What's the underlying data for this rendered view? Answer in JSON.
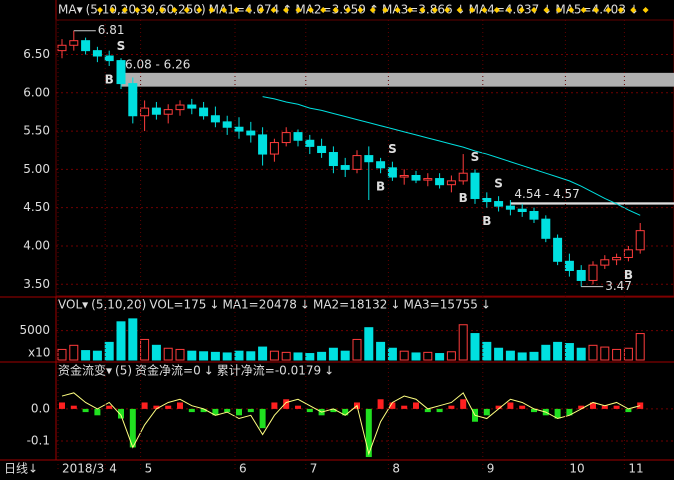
{
  "chart_data": [
    {
      "type": "candlestick",
      "header": [
        {
          "text": "MA▾",
          "color": "#ffffff"
        },
        {
          "text": "(5,10,20,30,60,250)",
          "color": "#ffffff"
        },
        {
          "text": "MA1=4.074",
          "color": "#ffffff"
        },
        {
          "text": "↑",
          "color": "#ff4040"
        },
        {
          "text": "MA2=3.959",
          "color": "#ffff00"
        },
        {
          "text": "↑",
          "color": "#ff4040"
        },
        {
          "text": "MA3=3.866",
          "color": "#ff40ff"
        },
        {
          "text": "↓",
          "color": "#00e0e0"
        },
        {
          "text": "MA4=4.037",
          "color": "#40ff40"
        },
        {
          "text": "↓",
          "color": "#00e0e0"
        },
        {
          "text": "MA5=4.403",
          "color": "#00e0e0"
        },
        {
          "text": "↓",
          "color": "#00e0e0"
        }
      ],
      "ylim": [
        3.36,
        6.95
      ],
      "yticks": [
        {
          "value": 6.5,
          "label": "6.50"
        },
        {
          "value": 6,
          "label": "6.00"
        },
        {
          "value": 5.5,
          "label": "5.50"
        },
        {
          "value": 5,
          "label": "5.00"
        },
        {
          "value": 4.5,
          "label": "4.50"
        },
        {
          "value": 4,
          "label": "4.00"
        },
        {
          "value": 3.5,
          "label": "3.50"
        }
      ],
      "up_color": "#ff3c3c",
      "down_color": "#00e0e0",
      "ohlc": [
        [
          6.55,
          6.7,
          6.45,
          6.62
        ],
        [
          6.62,
          6.81,
          6.55,
          6.68
        ],
        [
          6.68,
          6.72,
          6.5,
          6.55
        ],
        [
          6.55,
          6.6,
          6.4,
          6.48
        ],
        [
          6.48,
          6.55,
          6.35,
          6.42
        ],
        [
          6.42,
          6.45,
          6.05,
          6.12
        ],
        [
          6.12,
          6.2,
          5.6,
          5.7
        ],
        [
          5.7,
          5.9,
          5.5,
          5.8
        ],
        [
          5.8,
          5.88,
          5.65,
          5.72
        ],
        [
          5.72,
          5.85,
          5.6,
          5.78
        ],
        [
          5.78,
          5.9,
          5.7,
          5.84
        ],
        [
          5.84,
          5.92,
          5.72,
          5.8
        ],
        [
          5.8,
          5.88,
          5.65,
          5.7
        ],
        [
          5.7,
          5.82,
          5.55,
          5.62
        ],
        [
          5.62,
          5.7,
          5.45,
          5.55
        ],
        [
          5.55,
          5.68,
          5.4,
          5.5
        ],
        [
          5.5,
          5.62,
          5.35,
          5.45
        ],
        [
          5.45,
          5.55,
          5.05,
          5.2
        ],
        [
          5.2,
          5.4,
          5.1,
          5.35
        ],
        [
          5.35,
          5.55,
          5.3,
          5.48
        ],
        [
          5.48,
          5.52,
          5.3,
          5.38
        ],
        [
          5.38,
          5.45,
          5.2,
          5.3
        ],
        [
          5.3,
          5.4,
          5.15,
          5.22
        ],
        [
          5.22,
          5.3,
          4.95,
          5.05
        ],
        [
          5.05,
          5.15,
          4.9,
          5.0
        ],
        [
          5.0,
          5.25,
          4.95,
          5.18
        ],
        [
          5.18,
          5.3,
          4.6,
          5.1
        ],
        [
          5.1,
          5.15,
          4.95,
          5.02
        ],
        [
          5.02,
          5.1,
          4.85,
          4.9
        ],
        [
          4.9,
          5.0,
          4.8,
          4.92
        ],
        [
          4.92,
          4.98,
          4.82,
          4.86
        ],
        [
          4.86,
          4.95,
          4.78,
          4.88
        ],
        [
          4.88,
          4.95,
          4.75,
          4.8
        ],
        [
          4.8,
          4.92,
          4.7,
          4.85
        ],
        [
          4.85,
          5.2,
          4.8,
          4.95
        ],
        [
          4.95,
          5.0,
          4.55,
          4.62
        ],
        [
          4.62,
          4.7,
          4.5,
          4.58
        ],
        [
          4.58,
          4.65,
          4.45,
          4.52
        ],
        [
          4.52,
          4.6,
          4.4,
          4.48
        ],
        [
          4.48,
          4.55,
          4.38,
          4.45
        ],
        [
          4.45,
          4.5,
          4.3,
          4.35
        ],
        [
          4.35,
          4.4,
          4.05,
          4.1
        ],
        [
          4.1,
          4.15,
          3.75,
          3.8
        ],
        [
          3.8,
          3.9,
          3.6,
          3.68
        ],
        [
          3.68,
          3.75,
          3.47,
          3.55
        ],
        [
          3.55,
          3.8,
          3.5,
          3.75
        ],
        [
          3.75,
          3.88,
          3.7,
          3.82
        ],
        [
          3.82,
          3.9,
          3.75,
          3.85
        ],
        [
          3.85,
          4.0,
          3.8,
          3.95
        ],
        [
          3.95,
          4.3,
          3.9,
          4.2
        ]
      ],
      "line": {
        "color": "#00e0e0",
        "values": [
          null,
          null,
          null,
          null,
          null,
          null,
          null,
          null,
          null,
          null,
          null,
          null,
          null,
          null,
          null,
          null,
          null,
          5.95,
          5.92,
          5.88,
          5.85,
          5.8,
          5.77,
          5.73,
          5.69,
          5.65,
          5.61,
          5.57,
          5.53,
          5.49,
          5.45,
          5.41,
          5.37,
          5.33,
          5.29,
          5.24,
          5.2,
          5.15,
          5.1,
          5.05,
          5.0,
          4.95,
          4.9,
          4.85,
          4.78,
          4.7,
          4.62,
          4.55,
          4.47,
          4.4
        ]
      },
      "bands": [
        {
          "label": "6.08 - 6.26",
          "range": [
            6.08,
            6.26
          ],
          "from": 5,
          "color": "#b0b0b0"
        },
        {
          "label": "4.54 - 4.57",
          "range": [
            4.54,
            4.57
          ],
          "from": 38,
          "color": "#e0e0e0"
        }
      ],
      "signals": [
        {
          "label": "S",
          "x": 5
        },
        {
          "label": "B",
          "x": 4
        },
        {
          "label": "S",
          "x": 28
        },
        {
          "label": "B",
          "x": 27
        },
        {
          "label": "S",
          "x": 35
        },
        {
          "label": "B",
          "x": 34
        },
        {
          "label": "S",
          "x": 37
        },
        {
          "label": "B",
          "x": 36
        },
        {
          "label": "B",
          "x": 48
        }
      ],
      "annotations": [
        {
          "label": "6.81",
          "x": 1,
          "value": 6.81
        },
        {
          "label": "3.47",
          "x": 44,
          "value": 3.47
        }
      ]
    },
    {
      "type": "volume",
      "header": [
        {
          "text": "VOL▾",
          "color": "#ffffff"
        },
        {
          "text": "(5,10,20)",
          "color": "#ffff00"
        },
        {
          "text": "VOL=175",
          "color": "#ffffff"
        },
        {
          "text": "↓",
          "color": "#00e0e0"
        },
        {
          "text": "MA1=20478",
          "color": "#ffffff"
        },
        {
          "text": "↓",
          "color": "#00e0e0"
        },
        {
          "text": "MA2=18132",
          "color": "#ff40ff"
        },
        {
          "text": "↓",
          "color": "#00e0e0"
        },
        {
          "text": "MA3=15755",
          "color": "#ff6080"
        },
        {
          "text": "↓",
          "color": "#00e0e0"
        }
      ],
      "ylim": [
        0,
        8000
      ],
      "yticks": [
        5000
      ],
      "unit_label": "x10",
      "values": [
        1800,
        2500,
        1600,
        1500,
        3000,
        6500,
        7000,
        3500,
        2500,
        2000,
        1800,
        1500,
        1400,
        1300,
        1200,
        1500,
        1400,
        2200,
        1500,
        1300,
        1200,
        1100,
        1300,
        2000,
        1500,
        3500,
        5500,
        3000,
        2000,
        1500,
        1200,
        1300,
        1100,
        1400,
        6000,
        4500,
        3000,
        2000,
        1500,
        1200,
        1300,
        2500,
        3000,
        2800,
        2000,
        2500,
        2200,
        1800,
        2000,
        4500
      ]
    },
    {
      "type": "flow",
      "header": [
        {
          "text": "资金流变▾",
          "color": "#ffb040"
        },
        {
          "text": "(5)",
          "color": "#ffffff"
        },
        {
          "text": "资金净流=0",
          "color": "#ffffff"
        },
        {
          "text": "↓",
          "color": "#00e0e0"
        },
        {
          "text": "累计净流=-0.0179",
          "color": "#ffff00"
        },
        {
          "text": "↓",
          "color": "#00e0e0"
        }
      ],
      "ylim": [
        -0.153,
        0.09
      ],
      "yticks": [
        {
          "value": 0,
          "label": "0.0"
        },
        {
          "value": -0.1,
          "label": "-0.1"
        }
      ],
      "pos_color": "#ff2020",
      "neg_color": "#20e020",
      "line_color": "#ffff80",
      "values": [
        0.02,
        0.01,
        -0.01,
        -0.02,
        0.01,
        -0.03,
        -0.12,
        0.02,
        0.01,
        0.01,
        0.02,
        -0.01,
        -0.01,
        -0.02,
        -0.01,
        -0.02,
        -0.01,
        -0.06,
        0.02,
        0.03,
        0.01,
        -0.01,
        -0.02,
        -0.01,
        -0.02,
        0.02,
        -0.15,
        0.03,
        0.02,
        0.01,
        0.02,
        -0.01,
        -0.01,
        0.01,
        0.03,
        -0.04,
        -0.02,
        0.01,
        0.02,
        0.01,
        -0.01,
        -0.02,
        -0.03,
        -0.02,
        0.01,
        0.02,
        0.01,
        0.01,
        -0.01,
        0.02
      ],
      "line": [
        0.04,
        0.05,
        0.02,
        0.0,
        0.02,
        -0.02,
        -0.12,
        -0.05,
        0.0,
        0.02,
        0.03,
        0.01,
        0.0,
        -0.02,
        -0.01,
        -0.03,
        -0.02,
        -0.08,
        -0.02,
        0.02,
        0.03,
        0.01,
        -0.01,
        0.0,
        -0.02,
        0.01,
        -0.14,
        -0.04,
        0.02,
        0.04,
        0.03,
        0.0,
        0.01,
        0.02,
        0.05,
        -0.02,
        -0.03,
        0.0,
        0.03,
        0.02,
        0.0,
        -0.01,
        -0.03,
        -0.02,
        0.0,
        0.02,
        0.01,
        0.02,
        0.0,
        0.01
      ],
      "x_label": "日线↓",
      "xticks": [
        {
          "value": 0,
          "label": "2018/3"
        },
        {
          "value": 4,
          "label": "4"
        },
        {
          "value": 7,
          "label": "5"
        },
        {
          "value": 15,
          "label": "6"
        },
        {
          "value": 21,
          "label": "7"
        },
        {
          "value": 28,
          "label": "8"
        },
        {
          "value": 36,
          "label": "9"
        },
        {
          "value": 43,
          "label": "10"
        },
        {
          "value": 48,
          "label": "11"
        }
      ]
    }
  ]
}
